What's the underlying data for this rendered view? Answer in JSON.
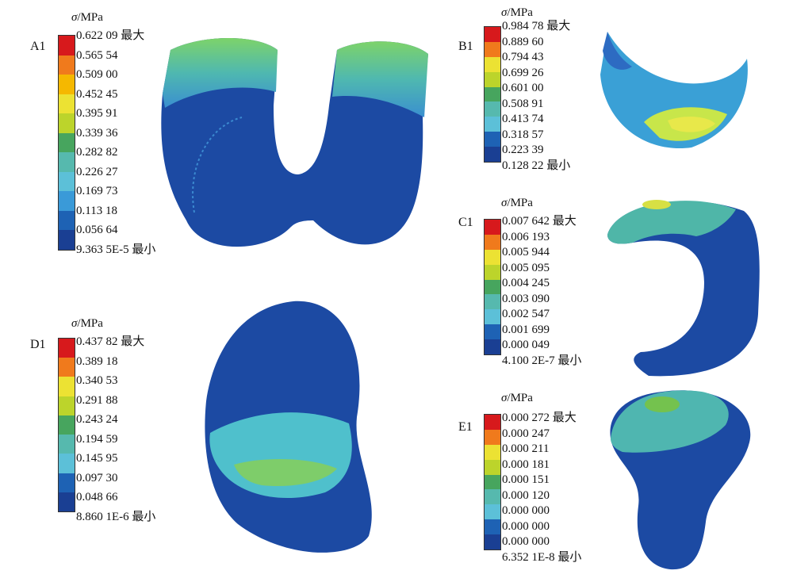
{
  "unit_symbol": "σ",
  "unit_text": "/MPa",
  "colors": [
    "#d7191c",
    "#f07a1c",
    "#f5b800",
    "#ece233",
    "#bcd42b",
    "#74b93a",
    "#47a55e",
    "#56b9ae",
    "#5cc0d8",
    "#3a9ad8",
    "#1e62b4",
    "#1a3f93"
  ],
  "panels": {
    "A1": {
      "label": "A1",
      "ticks": [
        "0.622 09 最大",
        "0.565 54",
        "0.509 00",
        "0.452 45",
        "0.395 91",
        "0.339 36",
        "0.282 82",
        "0.226 27",
        "0.169 73",
        "0.113 18",
        "0.056 64",
        "9.363 5E-5 最小"
      ]
    },
    "B1": {
      "label": "B1",
      "ticks": [
        "0.984 78 最大",
        "0.889 60",
        "0.794 43",
        "0.699 26",
        "0.601 00",
        "0.508 91",
        "0.413 74",
        "0.318 57",
        "0.223 39",
        "0.128 22 最小"
      ]
    },
    "C1": {
      "label": "C1",
      "ticks": [
        "0.007 642 最大",
        "0.006 193",
        "0.005 944",
        "0.005 095",
        "0.004 245",
        "0.003 090",
        "0.002 547",
        "0.001 699",
        "0.000 049",
        "4.100 2E-7 最小"
      ]
    },
    "D1": {
      "label": "D1",
      "ticks": [
        "0.437 82 最大",
        "0.389 18",
        "0.340 53",
        "0.291 88",
        "0.243 24",
        "0.194 59",
        "0.145 95",
        "0.097 30",
        "0.048 66",
        "8.860 1E-6 最小"
      ]
    },
    "E1": {
      "label": "E1",
      "ticks": [
        "0.000 272 最大",
        "0.000 247",
        "0.000 211",
        "0.000 181",
        "0.000 151",
        "0.000 120",
        "0.000 000",
        "0.000 000",
        "0.000 000",
        "6.352 1E-8 最小"
      ]
    }
  }
}
